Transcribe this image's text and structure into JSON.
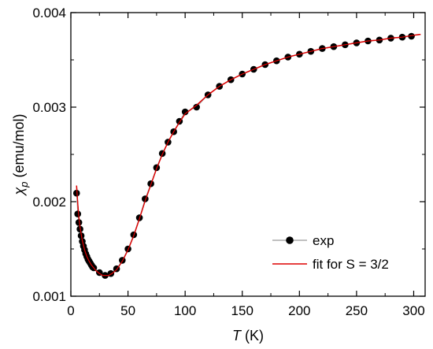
{
  "chart_data": {
    "type": "scatter",
    "xlabel": {
      "italic": "T",
      "rest": " (K)"
    },
    "ylabel": {
      "symbol": "χ",
      "subscript": "p",
      "rest": " (emu/mol)"
    },
    "xlim": [
      0,
      310
    ],
    "ylim": [
      0.001,
      0.004
    ],
    "xticks": [
      0,
      50,
      100,
      150,
      200,
      250,
      300
    ],
    "xtick_labels": [
      "0",
      "50",
      "100",
      "150",
      "200",
      "250",
      "300"
    ],
    "yticks": [
      0.001,
      0.002,
      0.003,
      0.004
    ],
    "ytick_labels": [
      "0.001",
      "0.002",
      "0.003",
      "0.004"
    ],
    "grid": false,
    "legend_position": "bottom-right",
    "series": [
      {
        "name": "exp",
        "style": "markers",
        "color": "#000000",
        "line_color": "#9a9a9a",
        "x": [
          5,
          6,
          7,
          8,
          9,
          10,
          11,
          12,
          13,
          14,
          15,
          16,
          17,
          18,
          19,
          20,
          25,
          30,
          35,
          40,
          45,
          50,
          55,
          60,
          65,
          70,
          75,
          80,
          85,
          90,
          95,
          100,
          110,
          120,
          130,
          140,
          150,
          160,
          170,
          180,
          190,
          200,
          210,
          220,
          230,
          240,
          250,
          260,
          270,
          280,
          290,
          298
        ],
        "y": [
          0.00209,
          0.00187,
          0.00178,
          0.00171,
          0.00164,
          0.00158,
          0.00153,
          0.00149,
          0.00145,
          0.00142,
          0.00139,
          0.00137,
          0.00135,
          0.00133,
          0.00131,
          0.0013,
          0.00125,
          0.00122,
          0.00124,
          0.00129,
          0.00138,
          0.0015,
          0.00165,
          0.00183,
          0.00203,
          0.00219,
          0.00236,
          0.00251,
          0.00263,
          0.00274,
          0.00285,
          0.00295,
          0.003,
          0.00313,
          0.00322,
          0.00329,
          0.00335,
          0.0034,
          0.00345,
          0.00349,
          0.00353,
          0.00356,
          0.00359,
          0.00362,
          0.00364,
          0.00366,
          0.00368,
          0.0037,
          0.00371,
          0.00373,
          0.00374,
          0.00375
        ]
      },
      {
        "name": "fit for S = 3/2",
        "style": "line",
        "color": "#dd0000",
        "x": [
          5,
          6,
          7,
          8,
          10,
          12,
          14,
          16,
          18,
          20,
          22,
          25,
          28,
          30,
          33,
          36,
          40,
          45,
          50,
          55,
          60,
          65,
          70,
          75,
          80,
          85,
          90,
          95,
          100,
          110,
          120,
          130,
          140,
          150,
          160,
          170,
          180,
          190,
          200,
          210,
          220,
          230,
          240,
          250,
          260,
          270,
          280,
          290,
          300,
          306
        ],
        "y": [
          0.00217,
          0.00198,
          0.00184,
          0.00173,
          0.00159,
          0.00149,
          0.00142,
          0.00137,
          0.00133,
          0.0013,
          0.00127,
          0.00124,
          0.00122,
          0.00122,
          0.00122,
          0.00124,
          0.00128,
          0.00137,
          0.00149,
          0.00164,
          0.00182,
          0.00201,
          0.00218,
          0.00235,
          0.0025,
          0.00263,
          0.00274,
          0.00284,
          0.00293,
          0.00302,
          0.00313,
          0.00322,
          0.00329,
          0.00335,
          0.0034,
          0.00345,
          0.00349,
          0.00353,
          0.00356,
          0.00359,
          0.00362,
          0.00364,
          0.00366,
          0.00368,
          0.0037,
          0.00371,
          0.00373,
          0.00374,
          0.00376,
          0.00377
        ]
      }
    ]
  }
}
